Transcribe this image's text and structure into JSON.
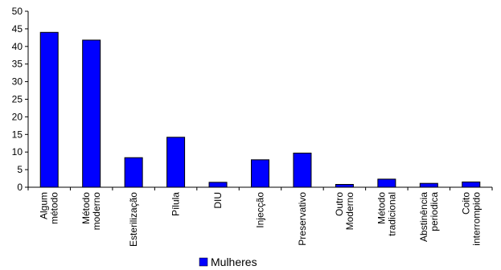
{
  "chart_data": {
    "type": "bar",
    "categories": [
      [
        "Algum",
        "método"
      ],
      [
        "Método",
        "moderno"
      ],
      [
        "Esterilização"
      ],
      [
        "Pílula"
      ],
      [
        "DIU"
      ],
      [
        "Injecção"
      ],
      [
        "Preservativo"
      ],
      [
        "Outro",
        "Moderno"
      ],
      [
        "Método",
        "tradicional"
      ],
      [
        "Abstinência",
        "periodica"
      ],
      [
        "Coito",
        "interrompido"
      ]
    ],
    "series": [
      {
        "name": "Mulheres",
        "color": "#0000ff",
        "values": [
          44,
          41.8,
          8.4,
          14.2,
          1.4,
          7.8,
          9.7,
          0.8,
          2.3,
          1.1,
          1.5
        ]
      }
    ],
    "ylim": [
      0,
      50
    ],
    "yticks": [
      0,
      5,
      10,
      15,
      20,
      25,
      30,
      35,
      40,
      45,
      50
    ],
    "grid": false,
    "legend_position": "bottom",
    "title": "",
    "xlabel": "",
    "ylabel": ""
  }
}
